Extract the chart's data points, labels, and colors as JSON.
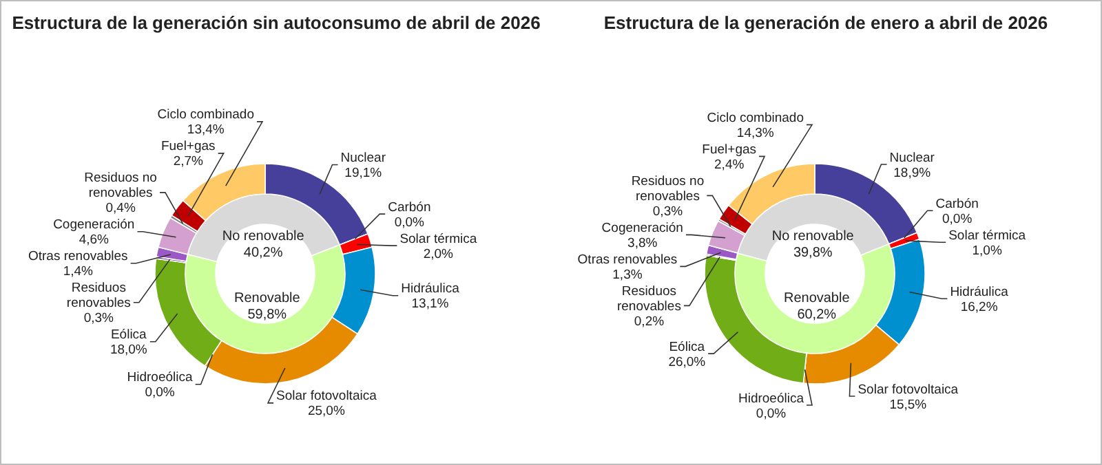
{
  "chart_data": [
    {
      "type": "donut",
      "title": "Estructura de la generación sin autoconsumo de abril de 2026",
      "data_labels": true,
      "categories": [
        "No renovable",
        "Renovable"
      ],
      "values": [
        40.2,
        59.8
      ],
      "value_labels": [
        "40,2%",
        "59,8%"
      ],
      "colors": [
        "#d9d9d9",
        "#ccff99"
      ]
    },
    {
      "type": "donut",
      "data_labels": true,
      "categories": [
        "Nuclear",
        "Carbón",
        "Solar térmica",
        "Hidráulica",
        "Solar fotovoltaica",
        "Hidroeólica",
        "Eólica",
        "Residuos renovables",
        "Otras renovables",
        "Cogeneración",
        "Residuos no renovables",
        "Fuel+gas",
        "Ciclo combinado"
      ],
      "values": [
        19.1,
        0.0,
        2.0,
        13.1,
        25.0,
        0.0,
        18.0,
        0.3,
        1.4,
        4.6,
        0.4,
        2.7,
        13.4
      ],
      "value_labels": [
        "19,1%",
        "0,0%",
        "2,0%",
        "13,1%",
        "25,0%",
        "0,0%",
        "18,0%",
        "0,3%",
        "1,4%",
        "4,6%",
        "0,4%",
        "2,7%",
        "13,4%"
      ],
      "colors": [
        "#47409a",
        "#404040",
        "#ff0000",
        "#0090d0",
        "#e68a00",
        "#3a7d1c",
        "#70ad17",
        "#7030a0",
        "#9b59c5",
        "#d4a0cf",
        "#7f7f7f",
        "#c00000",
        "#ffc966"
      ]
    },
    {
      "type": "donut",
      "title": "Estructura de la generación de enero a abril de 2026",
      "data_labels": true,
      "categories": [
        "No renovable",
        "Renovable"
      ],
      "values": [
        39.8,
        60.2
      ],
      "value_labels": [
        "39,8%",
        "60,2%"
      ],
      "colors": [
        "#d9d9d9",
        "#ccff99"
      ]
    },
    {
      "type": "donut",
      "data_labels": true,
      "categories": [
        "Nuclear",
        "Carbón",
        "Solar térmica",
        "Hidráulica",
        "Solar fotovoltaica",
        "Hidroeólica",
        "Eólica",
        "Residuos renovables",
        "Otras renovables",
        "Cogeneración",
        "Residuos no renovables",
        "Fuel+gas",
        "Ciclo combinado"
      ],
      "values": [
        18.9,
        0.0,
        1.0,
        16.2,
        15.5,
        0.0,
        26.0,
        0.2,
        1.3,
        3.8,
        0.3,
        2.4,
        14.3
      ],
      "value_labels": [
        "18,9%",
        "0,0%",
        "1,0%",
        "16,2%",
        "15,5%",
        "0,0%",
        "26,0%",
        "0,2%",
        "1,3%",
        "3,8%",
        "0,3%",
        "2,4%",
        "14,3%"
      ],
      "colors": [
        "#47409a",
        "#404040",
        "#ff0000",
        "#0090d0",
        "#e68a00",
        "#3a7d1c",
        "#70ad17",
        "#7030a0",
        "#9b59c5",
        "#d4a0cf",
        "#7f7f7f",
        "#c00000",
        "#ffc966"
      ]
    }
  ]
}
